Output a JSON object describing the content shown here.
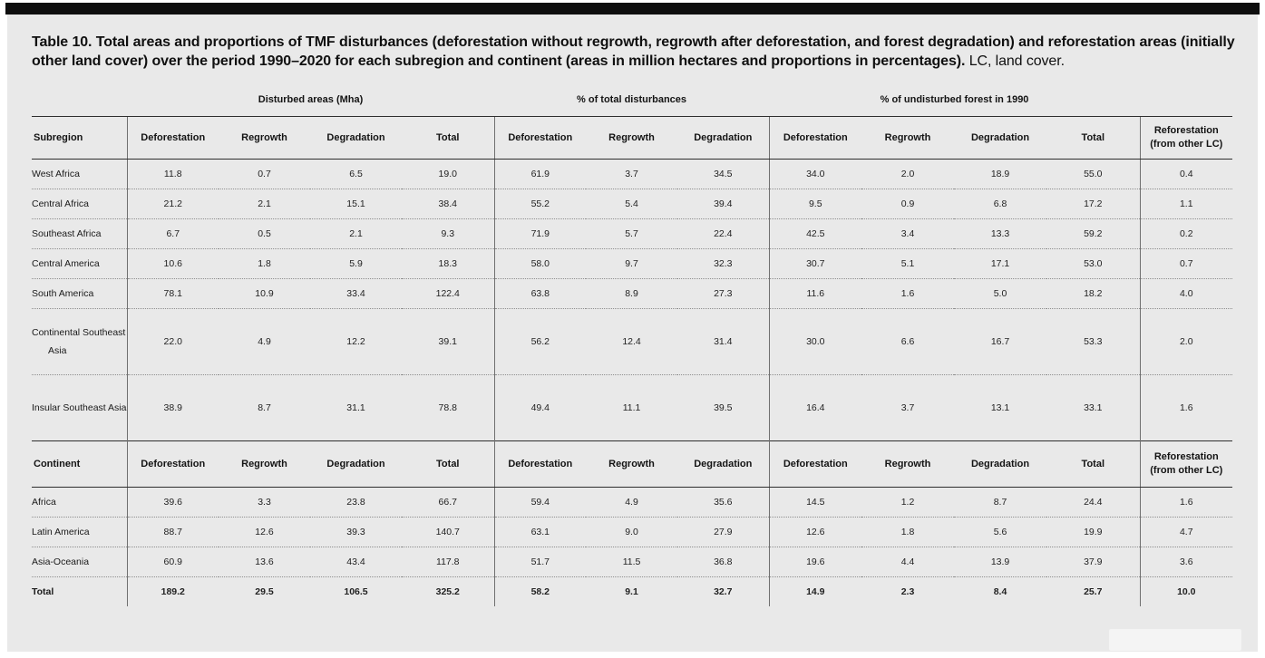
{
  "caption": {
    "bold": "Table 10. Total areas and proportions of TMF disturbances (deforestation without regrowth, regrowth after deforestation, and forest degradation) and reforestation areas (initially other land cover) over the period 1990–2020 for each subregion and continent (areas in million hectares and proportions in percentages).",
    "regular": " LC, land cover."
  },
  "table": {
    "groups": [
      {
        "label": "Disturbed areas (Mha)"
      },
      {
        "label": "% of total disturbances"
      },
      {
        "label": "% of undisturbed forest in 1990"
      }
    ],
    "subregion_section": {
      "row_header": "Subregion",
      "columns": [
        "Deforestation",
        "Regrowth",
        "Degradation",
        "Total",
        "Deforestation",
        "Regrowth",
        "Degradation",
        "Deforestation",
        "Regrowth",
        "Degradation",
        "Total"
      ],
      "last_column": [
        "Reforestation",
        "(from other LC)"
      ],
      "rows": [
        {
          "label": "West Africa",
          "values": [
            "11.8",
            "0.7",
            "6.5",
            "19.0",
            "61.9",
            "3.7",
            "34.5",
            "34.0",
            "2.0",
            "18.9",
            "55.0",
            "0.4"
          ]
        },
        {
          "label": "Central Africa",
          "values": [
            "21.2",
            "2.1",
            "15.1",
            "38.4",
            "55.2",
            "5.4",
            "39.4",
            "9.5",
            "0.9",
            "6.8",
            "17.2",
            "1.1"
          ]
        },
        {
          "label": "Southeast Africa",
          "values": [
            "6.7",
            "0.5",
            "2.1",
            "9.3",
            "71.9",
            "5.7",
            "22.4",
            "42.5",
            "3.4",
            "13.3",
            "59.2",
            "0.2"
          ]
        },
        {
          "label": "Central America",
          "values": [
            "10.6",
            "1.8",
            "5.9",
            "18.3",
            "58.0",
            "9.7",
            "32.3",
            "30.7",
            "5.1",
            "17.1",
            "53.0",
            "0.7"
          ]
        },
        {
          "label": "South America",
          "values": [
            "78.1",
            "10.9",
            "33.4",
            "122.4",
            "63.8",
            "8.9",
            "27.3",
            "11.6",
            "1.6",
            "5.0",
            "18.2",
            "4.0"
          ]
        },
        {
          "label": "Continental Southeast Asia",
          "values": [
            "22.0",
            "4.9",
            "12.2",
            "39.1",
            "56.2",
            "12.4",
            "31.4",
            "30.0",
            "6.6",
            "16.7",
            "53.3",
            "2.0"
          ]
        },
        {
          "label": "Insular Southeast Asia",
          "values": [
            "38.9",
            "8.7",
            "31.1",
            "78.8",
            "49.4",
            "11.1",
            "39.5",
            "16.4",
            "3.7",
            "13.1",
            "33.1",
            "1.6"
          ]
        }
      ]
    },
    "continent_section": {
      "row_header": "Continent",
      "columns": [
        "Deforestation",
        "Regrowth",
        "Degradation",
        "Total",
        "Deforestation",
        "Regrowth",
        "Degradation",
        "Deforestation",
        "Regrowth",
        "Degradation",
        "Total"
      ],
      "last_column": [
        "Reforestation",
        "(from other LC)"
      ],
      "rows": [
        {
          "label": "Africa",
          "values": [
            "39.6",
            "3.3",
            "23.8",
            "66.7",
            "59.4",
            "4.9",
            "35.6",
            "14.5",
            "1.2",
            "8.7",
            "24.4",
            "1.6"
          ]
        },
        {
          "label": "Latin America",
          "values": [
            "88.7",
            "12.6",
            "39.3",
            "140.7",
            "63.1",
            "9.0",
            "27.9",
            "12.6",
            "1.8",
            "5.6",
            "19.9",
            "4.7"
          ]
        },
        {
          "label": "Asia-Oceania",
          "values": [
            "60.9",
            "13.6",
            "43.4",
            "117.8",
            "51.7",
            "11.5",
            "36.8",
            "19.6",
            "4.4",
            "13.9",
            "37.9",
            "3.6"
          ]
        },
        {
          "label": "Total",
          "values": [
            "189.2",
            "29.5",
            "106.5",
            "325.2",
            "58.2",
            "9.1",
            "32.7",
            "14.9",
            "2.3",
            "8.4",
            "25.7",
            "10.0"
          ]
        }
      ]
    }
  }
}
